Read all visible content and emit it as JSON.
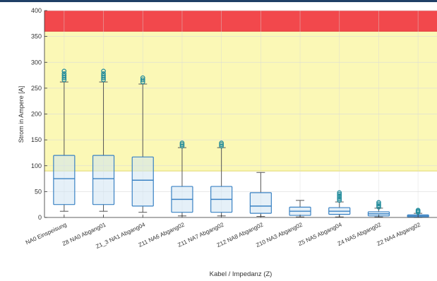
{
  "chart_data": {
    "type": "box",
    "title": "",
    "xlabel": "Kabel / Impedanz (Z)",
    "ylabel": "Strom in Ampere [A]",
    "ylim": [
      0,
      400
    ],
    "yticks": [
      0,
      50,
      100,
      150,
      200,
      250,
      300,
      350,
      400
    ],
    "grid": true,
    "bands": [
      {
        "from": 90,
        "to": 360,
        "color": "#fbf8b6",
        "line": "#e0d86a"
      },
      {
        "from": 360,
        "to": 400,
        "color": "#f2484c",
        "line": "#e03035"
      }
    ],
    "categories": [
      "NA0 Einspeisung",
      "Z8 NA0 Abgang01",
      "Z1_3 NA1 Abgang04",
      "Z11 NA6 Abgang02",
      "Z11 NA7 Abgang02",
      "Z12 NA8 Abgang02",
      "Z10 NA3 Abgang02",
      "Z5 NA5 Abgang04",
      "Z4 NA5 Abgang02",
      "Z2 NA4 Abgang02"
    ],
    "boxes": [
      {
        "whisker_low": 12,
        "q1": 25,
        "median": 75,
        "q3": 120,
        "whisker_high": 262,
        "outliers": [
          266,
          270,
          274,
          278,
          283
        ]
      },
      {
        "whisker_low": 12,
        "q1": 25,
        "median": 75,
        "q3": 120,
        "whisker_high": 262,
        "outliers": [
          266,
          270,
          274,
          278,
          283
        ]
      },
      {
        "whisker_low": 10,
        "q1": 22,
        "median": 72,
        "q3": 117,
        "whisker_high": 258,
        "outliers": [
          262,
          266,
          270
        ]
      },
      {
        "whisker_low": 3,
        "q1": 10,
        "median": 35,
        "q3": 60,
        "whisker_high": 135,
        "outliers": [
          138,
          141,
          144
        ]
      },
      {
        "whisker_low": 3,
        "q1": 10,
        "median": 35,
        "q3": 60,
        "whisker_high": 135,
        "outliers": [
          138,
          141,
          144
        ]
      },
      {
        "whisker_low": 2,
        "q1": 8,
        "median": 22,
        "q3": 48,
        "whisker_high": 87,
        "outliers": []
      },
      {
        "whisker_low": 1,
        "q1": 4,
        "median": 12,
        "q3": 20,
        "whisker_high": 33,
        "outliers": []
      },
      {
        "whisker_low": 1,
        "q1": 6,
        "median": 12,
        "q3": 19,
        "whisker_high": 30,
        "outliers": [
          33,
          36,
          39,
          42,
          45,
          48
        ]
      },
      {
        "whisker_low": 1,
        "q1": 3,
        "median": 7,
        "q3": 11,
        "whisker_high": 18,
        "outliers": [
          20,
          23,
          26,
          29
        ]
      },
      {
        "whisker_low": 0,
        "q1": 1,
        "median": 3,
        "q3": 5,
        "whisker_high": 8,
        "outliers": [
          10,
          12,
          14
        ]
      }
    ],
    "colors": {
      "box_stroke": "#3a82c4",
      "box_fill": "#cfe4f3",
      "median": "#3a82c4",
      "whisker": "#555555",
      "outlier": "#1f8a9a",
      "grid": "#d9d9d9",
      "axis": "#333333"
    }
  }
}
